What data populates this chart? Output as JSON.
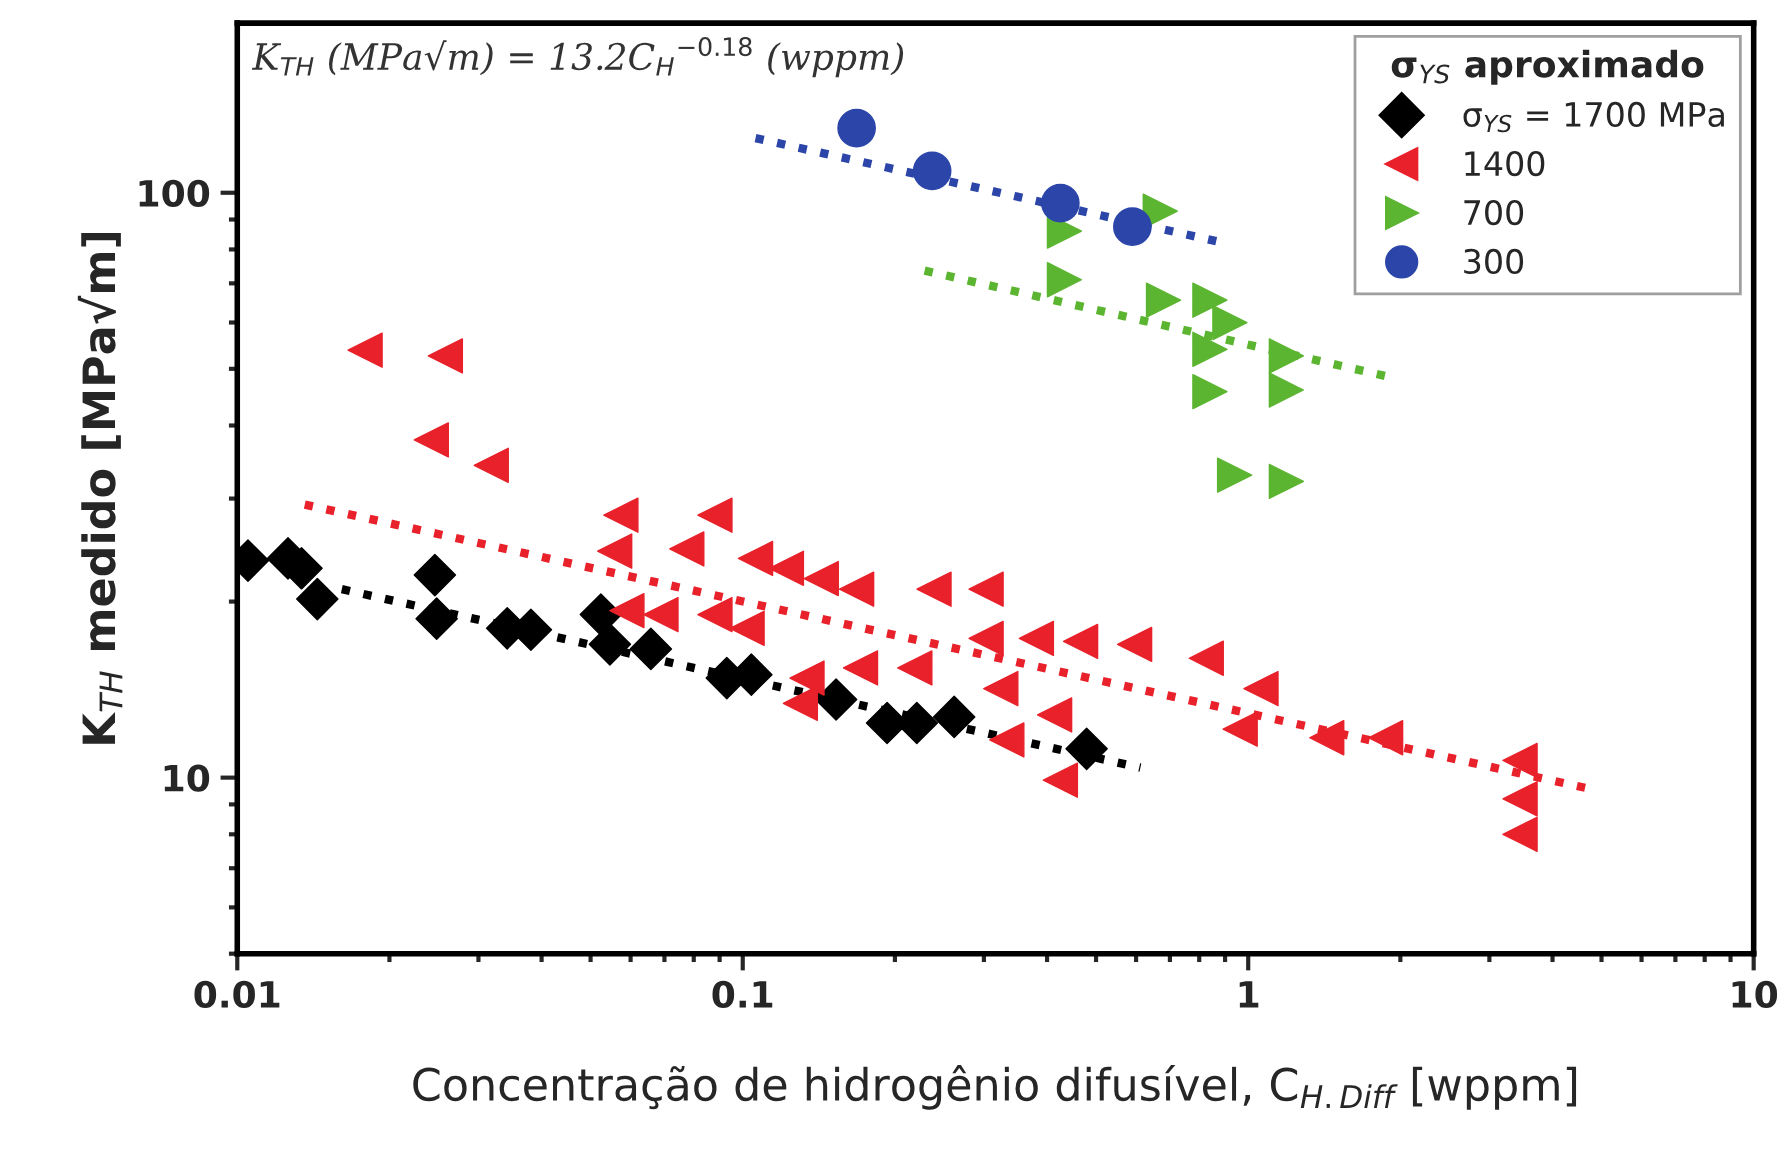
{
  "chart_data": {
    "type": "scatter",
    "xlabel": "Concentração de hidrogênio difusível, C$_{H.Diff}$ [wppm]",
    "ylabel": "K$_{TH}$ medido [MPa√m]",
    "legend_title": "σ$_{YS}$ aproximado",
    "annotations": [
      "K$_{TH}$ (MPa√m) = 13.2C$_{H}$$^{−0.18}$ (wppm)"
    ],
    "log": "xy",
    "grid": false,
    "legend": "top right",
    "xlim": [
      0.01,
      10
    ],
    "xticks": [
      {
        "value": 0.01,
        "label": "0.01"
      },
      {
        "value": 0.1,
        "label": "0.1"
      },
      1,
      10
    ],
    "ylim": [
      5,
      195
    ],
    "yticks": [
      10,
      100
    ],
    "series": [
      {
        "name": "σ$_{YS}$ = 1700 MPa",
        "color": "#000000",
        "marker": "diamond",
        "x": [
          0.0105,
          0.0126,
          0.0134,
          0.0144,
          0.0246,
          0.0248,
          0.0342,
          0.0381,
          0.0524,
          0.0546,
          0.0658,
          0.093,
          0.104,
          0.153,
          0.193,
          0.221,
          0.262,
          0.479
        ],
        "values": [
          23.5,
          23.7,
          22.8,
          20.2,
          22.2,
          18.7,
          18.0,
          17.9,
          19.0,
          16.9,
          16.6,
          14.8,
          15.0,
          13.6,
          12.4,
          12.4,
          12.7,
          11.2
        ]
      },
      {
        "name": "1400",
        "color": "#e8212a",
        "marker": "triangle-left",
        "x": [
          0.0179,
          0.0258,
          0.0242,
          0.0318,
          0.0574,
          0.0558,
          0.0881,
          0.0775,
          0.106,
          0.122,
          0.143,
          0.168,
          0.239,
          0.303,
          0.059,
          0.0689,
          0.0881,
          0.102,
          0.134,
          0.13,
          0.171,
          0.219,
          0.324,
          0.333,
          0.414,
          0.425,
          0.381,
          0.466,
          0.596,
          0.826,
          1.06,
          0.964,
          1.43,
          1.87,
          3.45,
          3.45,
          3.45,
          0.303
        ],
        "values": [
          53.8,
          52.6,
          37.8,
          34.2,
          28.1,
          24.4,
          28.1,
          24.6,
          23.7,
          22.8,
          21.9,
          21.0,
          21.0,
          21.0,
          19.3,
          19.0,
          19.0,
          18.0,
          14.8,
          13.4,
          15.4,
          15.4,
          14.2,
          11.6,
          12.8,
          9.9,
          17.3,
          17.1,
          16.9,
          16.0,
          14.2,
          12.1,
          11.7,
          11.7,
          10.7,
          9.2,
          8.0,
          17.3
        ]
      },
      {
        "name": "700",
        "color": "#5cb531",
        "marker": "triangle-right",
        "x": [
          0.67,
          0.433,
          0.433,
          0.68,
          0.84,
          0.92,
          0.84,
          1.19,
          0.84,
          1.19,
          0.94,
          1.19
        ],
        "values": [
          93,
          86,
          71,
          65.5,
          65.5,
          60,
          54,
          52.6,
          45.7,
          46,
          32.9,
          32.1
        ]
      },
      {
        "name": "300",
        "color": "#2b45a8",
        "marker": "circle",
        "x": [
          0.168,
          0.237,
          0.425,
          0.59
        ],
        "values": [
          129,
          109,
          96,
          87.5
        ]
      },
      {
        "type": "line",
        "color": "#000000",
        "line_style": "dotted",
        "x": [
          0.0161,
          0.612
        ],
        "values": [
          21.0,
          10.4
        ]
      },
      {
        "type": "line",
        "color": "#e8212a",
        "line_style": "dotted",
        "x": [
          0.0136,
          4.66
        ],
        "values": [
          29.3,
          9.6
        ]
      },
      {
        "type": "line",
        "color": "#5cb531",
        "line_style": "dotted",
        "x": [
          0.229,
          1.87
        ],
        "values": [
          73.6,
          48.6
        ]
      },
      {
        "type": "line",
        "color": "#2b45a8",
        "line_style": "dotted",
        "x": [
          0.106,
          0.9
        ],
        "values": [
          124,
          82
        ]
      }
    ]
  }
}
